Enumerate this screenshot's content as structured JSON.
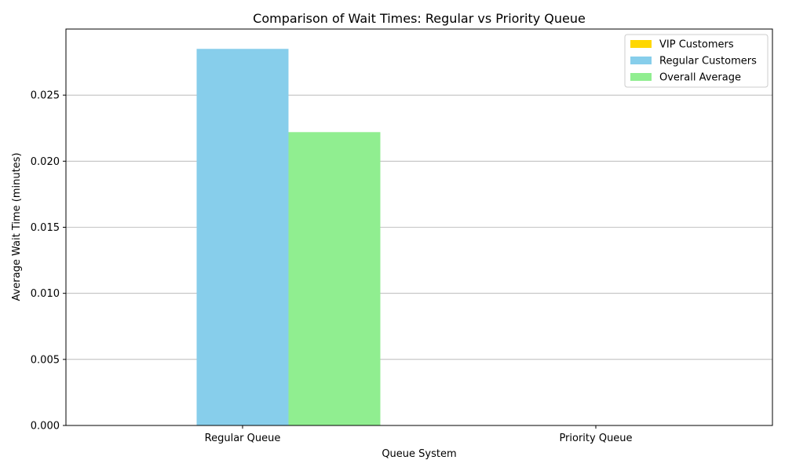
{
  "chart_data": {
    "type": "bar",
    "title": "Comparison of Wait Times: Regular vs Priority Queue",
    "xlabel": "Queue System",
    "ylabel": "Average Wait Time (minutes)",
    "categories": [
      "Regular Queue",
      "Priority Queue"
    ],
    "series": [
      {
        "name": "VIP Customers",
        "values": [
          0,
          0
        ],
        "color": "#FFD700"
      },
      {
        "name": "Regular Customers",
        "values": [
          0.0285,
          0
        ],
        "color": "#87CEEB"
      },
      {
        "name": "Overall Average",
        "values": [
          0.0222,
          0
        ],
        "color": "#90EE90"
      }
    ],
    "ylim": [
      0,
      0.03
    ],
    "yticks": [
      0,
      0.005,
      0.01,
      0.015,
      0.02,
      0.025
    ],
    "ytick_labels": [
      "0.000",
      "0.005",
      "0.010",
      "0.015",
      "0.020",
      "0.025"
    ],
    "grid": "y",
    "legend_position": "top-right"
  }
}
